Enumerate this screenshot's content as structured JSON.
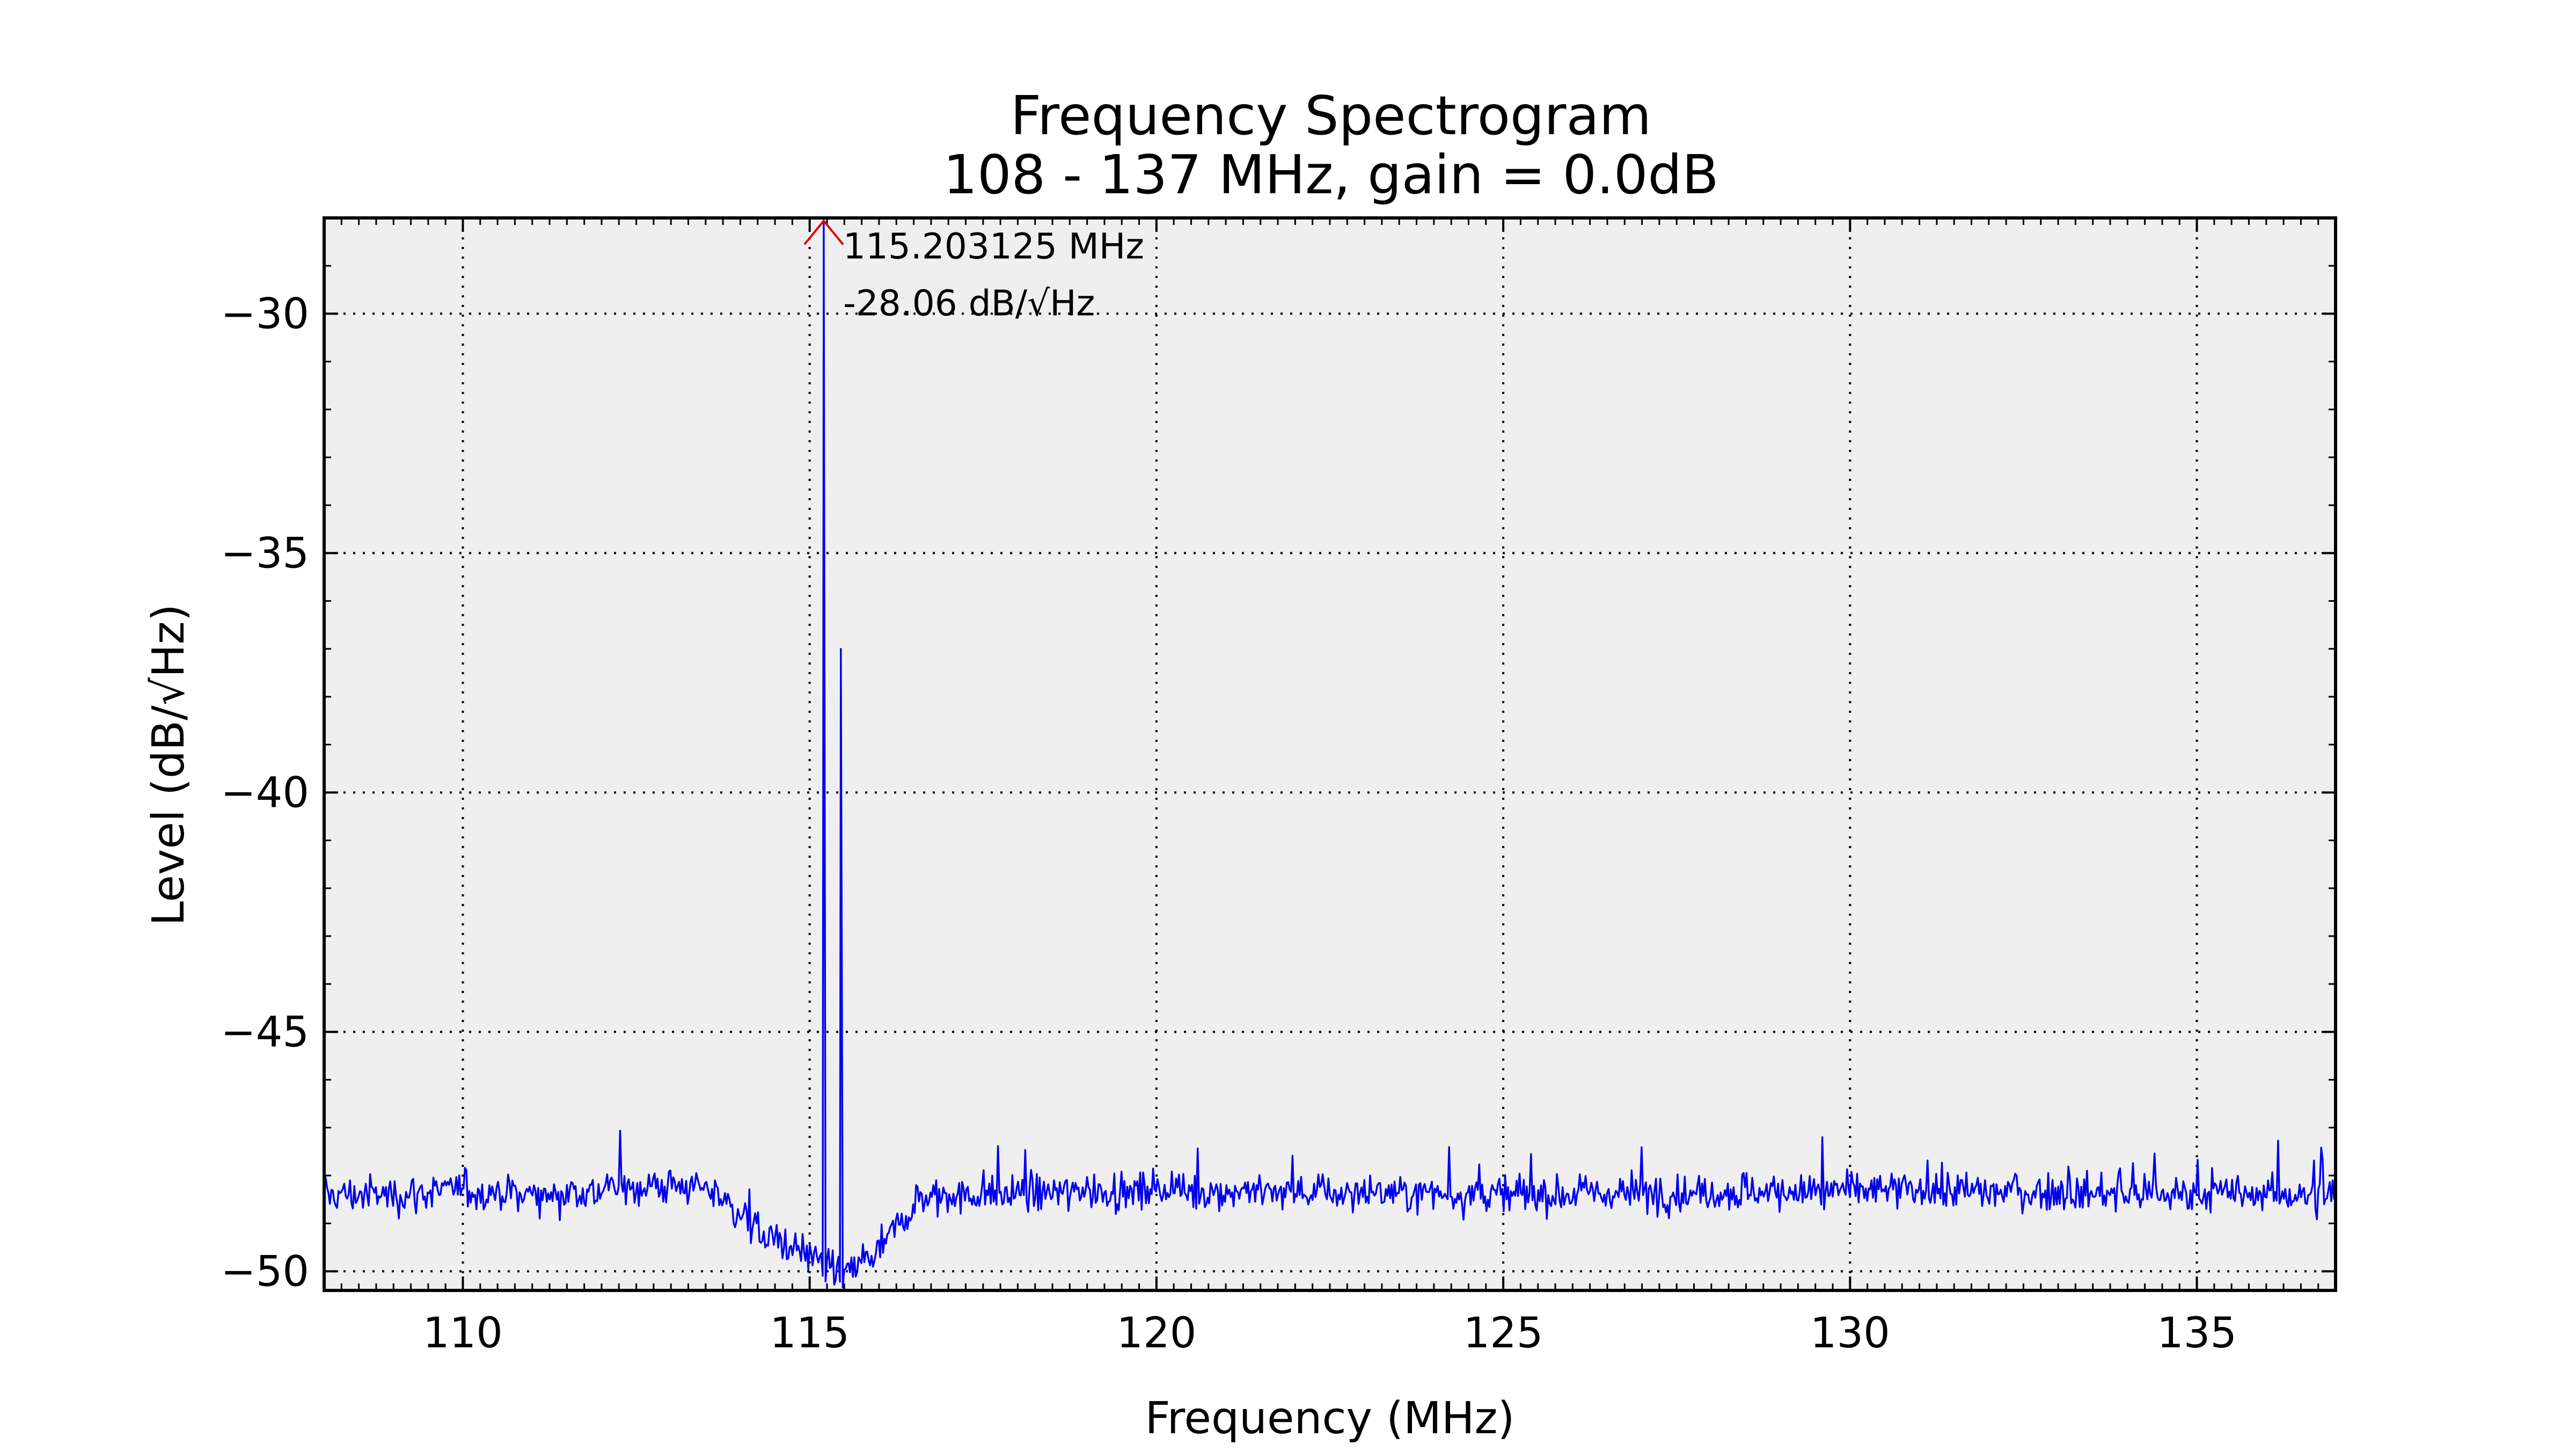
{
  "chart_data": {
    "type": "line",
    "title": "Frequency Spectrogram",
    "subtitle": "108 - 137 MHz, gain = 0.0dB",
    "xlabel": "Frequency (MHz)",
    "ylabel": "Level (dB/√Hz)",
    "xlim": [
      108,
      137
    ],
    "ylim": [
      -50.4,
      -28.0
    ],
    "xticks": [
      110,
      115,
      120,
      125,
      130,
      135
    ],
    "yticks": [
      -30,
      -35,
      -40,
      -45,
      -50
    ],
    "xtick_labels": [
      "110",
      "115",
      "120",
      "125",
      "130",
      "135"
    ],
    "ytick_labels": [
      "−30",
      "−35",
      "−40",
      "−45",
      "−50"
    ],
    "grid": true,
    "series": [
      {
        "color": "#0000ee",
        "noise_floor": [
          [
            108.0,
            -48.4
          ],
          [
            109.0,
            -48.4
          ],
          [
            110.0,
            -48.3
          ],
          [
            111.0,
            -48.4
          ],
          [
            112.0,
            -48.3
          ],
          [
            113.0,
            -48.2
          ],
          [
            113.6,
            -48.3
          ],
          [
            114.0,
            -48.8
          ],
          [
            114.5,
            -49.4
          ],
          [
            115.0,
            -49.7
          ],
          [
            115.6,
            -50.0
          ],
          [
            116.0,
            -49.6
          ],
          [
            116.3,
            -49.0
          ],
          [
            116.6,
            -48.5
          ],
          [
            117.0,
            -48.4
          ],
          [
            120.0,
            -48.3
          ],
          [
            125.0,
            -48.4
          ],
          [
            130.0,
            -48.3
          ],
          [
            135.0,
            -48.4
          ],
          [
            137.0,
            -48.4
          ]
        ],
        "peaks": [
          [
            115.203125,
            -28.06
          ],
          [
            115.45,
            -37.0
          ],
          [
            129.6,
            -47.2
          ]
        ]
      }
    ],
    "annotation": {
      "frequency_text": "115.203125 MHz",
      "level_text": "-28.06 dB/√Hz",
      "x": 115.203125,
      "y": -28.06,
      "marker_color": "#dd0000"
    },
    "colors": {
      "plot_background": "#efefef",
      "line": "#0000ee",
      "grid": "#000000",
      "marker": "#dd0000"
    }
  }
}
